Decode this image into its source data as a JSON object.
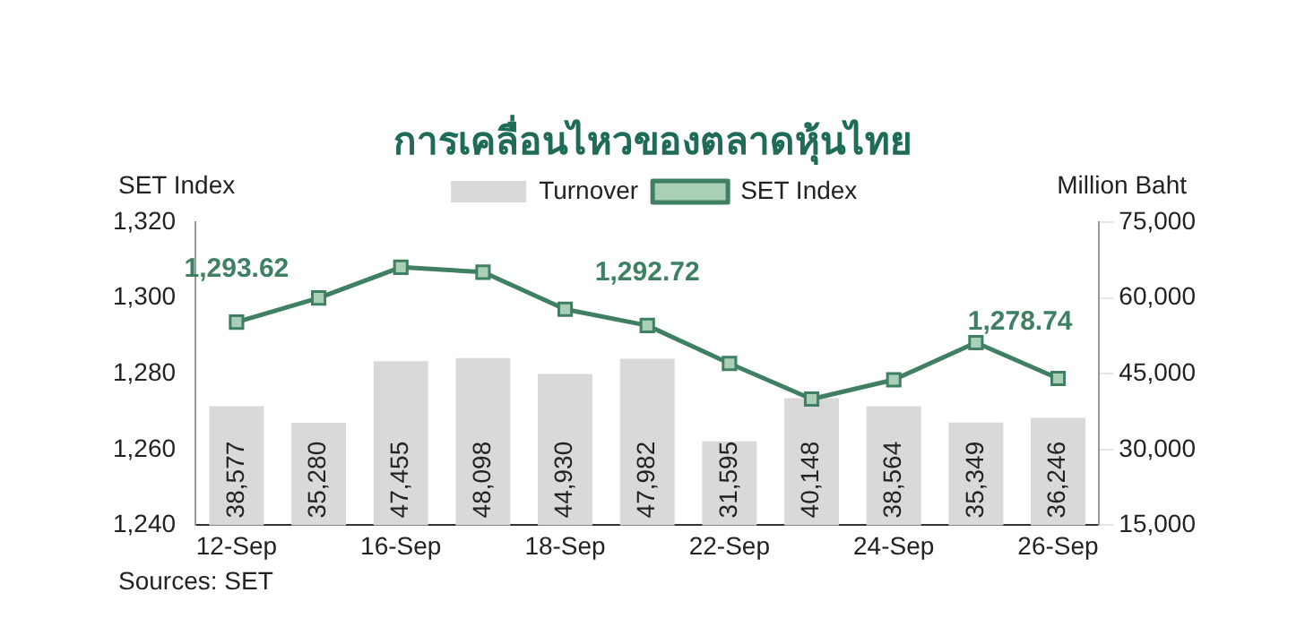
{
  "chart_data": {
    "type": "bar",
    "title": "การเคลื่อนไหวของตลาดหุ้นไทย",
    "ylabel": "SET Index",
    "y2label": "Million Baht",
    "categories": [
      "12-Sep",
      null,
      "16-Sep",
      null,
      "18-Sep",
      null,
      "22-Sep",
      null,
      "24-Sep",
      null,
      "26-Sep"
    ],
    "series": [
      {
        "name": "Turnover",
        "axis": "y2",
        "color": "#d9d9d9",
        "values": [
          38577,
          35280,
          47455,
          48098,
          44930,
          47982,
          31595,
          40148,
          38564,
          35349,
          36246
        ],
        "value_labels": [
          "38,577",
          "35,280",
          "47,455",
          "48,098",
          "44,930",
          "47,982",
          "31,595",
          "40,148",
          "38,564",
          "35,349",
          "36,246"
        ]
      },
      {
        "name": "SET Index",
        "type": "line",
        "axis": "y",
        "color": "#3f7f63",
        "marker": "square",
        "values": [
          1293.62,
          1300.0,
          1308.1,
          1306.8,
          1297.0,
          1292.72,
          1282.7,
          1273.3,
          1278.4,
          1288.2,
          1278.74
        ],
        "value_labels": [
          "1,293.62",
          null,
          null,
          null,
          null,
          "1,292.72",
          null,
          null,
          null,
          null,
          "1,278.74"
        ]
      }
    ],
    "ylim": [
      1240,
      1320
    ],
    "yticks": [
      {
        "value": 1240,
        "label": "1,240"
      },
      {
        "value": 1260,
        "label": "1,260"
      },
      {
        "value": 1280,
        "label": "1,280"
      },
      {
        "value": 1300,
        "label": "1,300"
      },
      {
        "value": 1320,
        "label": "1,320"
      }
    ],
    "y2lim": [
      15000,
      75000
    ],
    "y2ticks": [
      {
        "value": 15000,
        "label": "15,000"
      },
      {
        "value": 30000,
        "label": "30,000"
      },
      {
        "value": 45000,
        "label": "45,000"
      },
      {
        "value": 60000,
        "label": "60,000"
      },
      {
        "value": 75000,
        "label": "75,000"
      }
    ],
    "grid": false,
    "legend": "top",
    "annotations": [
      "Sources: SET"
    ]
  }
}
